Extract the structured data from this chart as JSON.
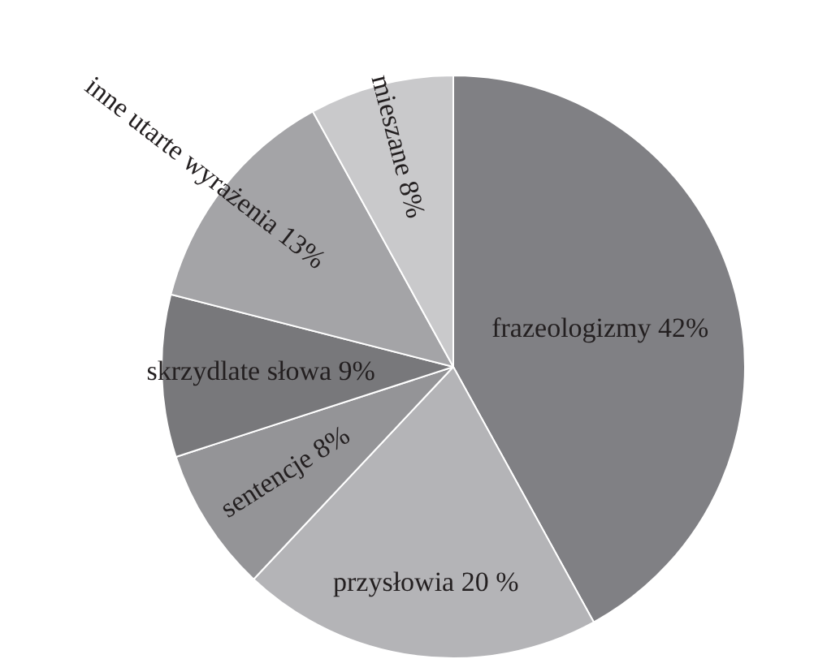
{
  "chart_data": {
    "type": "pie",
    "categories": [
      "frazeologizmy",
      "przysłowia",
      "sentencje",
      "skrzydlate słowa",
      "inne utarte wyrażenia",
      "mieszane"
    ],
    "values": [
      42,
      20,
      8,
      9,
      13,
      8
    ],
    "value_labels": [
      "42%",
      "20 %",
      "8%",
      "9%",
      "13%",
      "8%"
    ],
    "colors": [
      "#808084",
      "#b4b4b7",
      "#949497",
      "#78787b",
      "#a4a4a7",
      "#c9c9cb"
    ],
    "legend": false
  }
}
